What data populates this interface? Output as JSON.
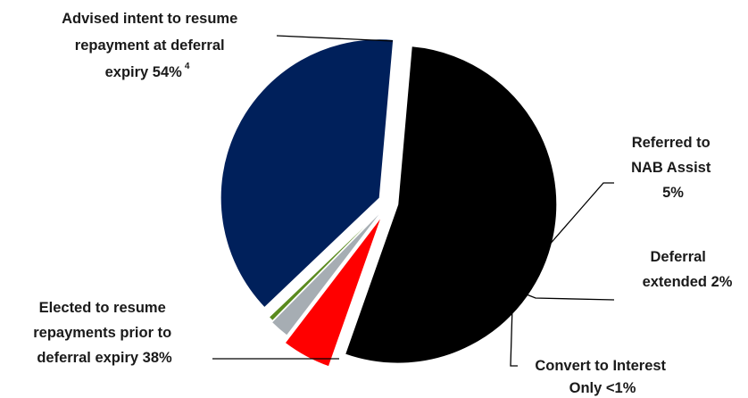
{
  "chart_data": {
    "type": "pie",
    "slices": [
      {
        "label_lines": [
          "Advised intent to resume",
          "repayment at deferral",
          "expiry 54%"
        ],
        "footnote": "4",
        "value": 54,
        "color": "#000000"
      },
      {
        "label_lines": [
          "Referred to",
          "NAB Assist",
          "5%"
        ],
        "value": 5,
        "color": "#ff0000"
      },
      {
        "label_lines": [
          "Deferral",
          "extended 2%"
        ],
        "value": 2,
        "color": "#a6adb3"
      },
      {
        "label_lines": [
          "Convert to Interest",
          "Only <1%"
        ],
        "value": 0.5,
        "color": "#5a8a1e"
      },
      {
        "label_lines": [
          "Elected to resume",
          "repayments prior to",
          "deferral expiry 38%"
        ],
        "value": 38.5,
        "color": "#00205b"
      }
    ],
    "start_angle_deg": 85,
    "direction": "clockwise",
    "legend": "none"
  }
}
